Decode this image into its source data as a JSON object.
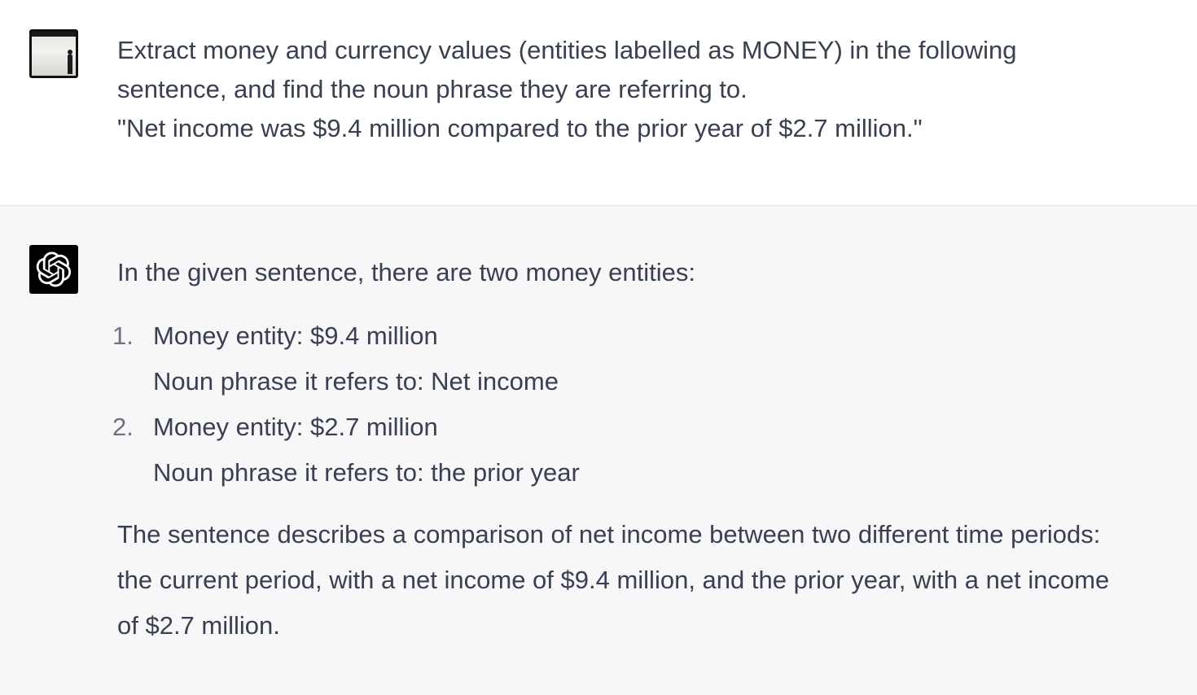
{
  "user_turn": {
    "avatar": "user-photo-avatar",
    "lines": [
      "Extract money and currency values (entities labelled as MONEY) in the following",
      "sentence, and find the noun phrase they are referring to.",
      "\"Net income was $9.4 million compared to the prior year of $2.7 million.\""
    ]
  },
  "assistant_turn": {
    "avatar": "openai-logo-icon",
    "intro": "In the given sentence, there are two money entities:",
    "entities": [
      {
        "number": "1.",
        "entity_line": "Money entity: $9.4 million",
        "noun_line": "Noun phrase it refers to: Net income"
      },
      {
        "number": "2.",
        "entity_line": "Money entity: $2.7 million",
        "noun_line": "Noun phrase it refers to: the prior year"
      }
    ],
    "conclusion_lines": [
      "The sentence describes a comparison of net income between two different time periods:",
      "the current period, with a net income of $9.4 million, and the prior year, with a net income",
      "of $2.7 million."
    ]
  },
  "colors": {
    "text": "#374151",
    "list_number": "#6b7280",
    "assistant_bg": "#f7f7f8",
    "user_bg": "#ffffff",
    "divider": "#e3e4e8",
    "bot_avatar_bg": "#000000"
  }
}
